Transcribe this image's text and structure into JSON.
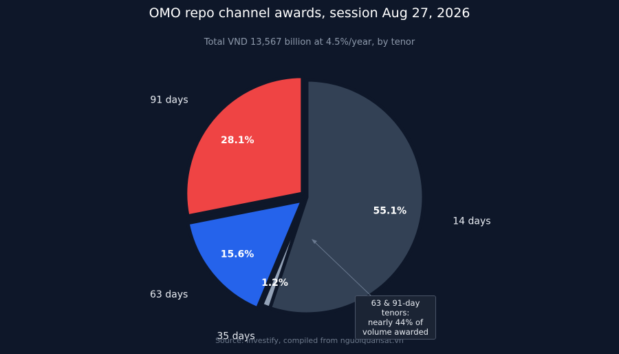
{
  "title": "OMO repo channel awards, session Aug 27, 2026",
  "subtitle": "Total VND 13,567 billion at 4.5%/year, by tenor",
  "source": "Source: Investify, compiled from nguoiquansat.vn",
  "annotation": {
    "lines": [
      "63 & 91-day tenors:",
      "nearly 44% of",
      "volume awarded"
    ]
  },
  "chart_data": {
    "type": "pie",
    "title": "OMO repo channel awards, session Aug 27, 2026",
    "start_angle_deg": 0,
    "direction": "clockwise",
    "slices": [
      {
        "label": "14 days",
        "value": 55.1,
        "display": "55.1%",
        "color": "#334155",
        "exploded": false
      },
      {
        "label": "35 days",
        "value": 1.2,
        "display": "1.2%",
        "color": "#94a3b8",
        "exploded": false
      },
      {
        "label": "63 days",
        "value": 15.6,
        "display": "15.6%",
        "color": "#2563eb",
        "exploded": true
      },
      {
        "label": "91 days",
        "value": 28.1,
        "display": "28.1%",
        "color": "#ef4444",
        "exploded": true
      }
    ]
  }
}
